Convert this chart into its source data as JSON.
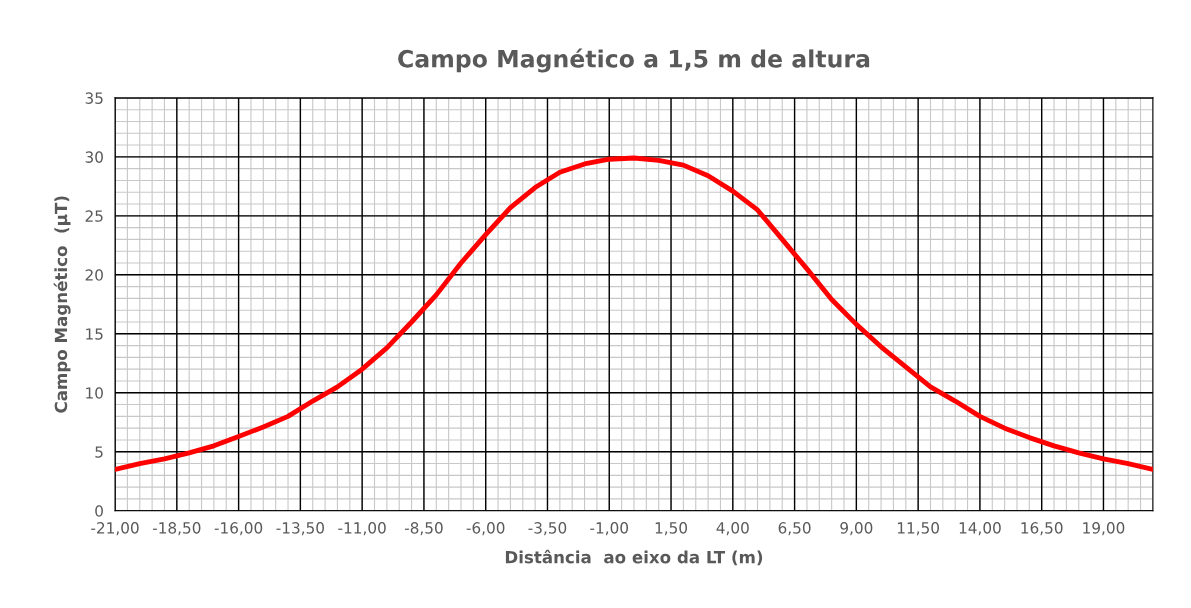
{
  "chart_data": {
    "type": "line",
    "title": "Campo Magnético a 1,5 m de altura",
    "xlabel": "Distância  ao eixo da LT (m)",
    "ylabel": "Campo Magnético  (µT)",
    "x": [
      -21,
      -20,
      -19,
      -18,
      -17,
      -16,
      -15,
      -14,
      -13,
      -12,
      -11,
      -10,
      -9,
      -8,
      -7,
      -6,
      -5,
      -4,
      -3,
      -2,
      -1,
      0,
      1,
      2,
      3,
      4,
      5,
      6,
      7,
      8,
      9,
      10,
      11,
      12,
      13,
      14,
      15,
      16,
      17,
      18,
      19,
      20,
      21
    ],
    "series": [
      {
        "color": "#ff0000",
        "values": [
          3.5,
          4.0,
          4.4,
          4.9,
          5.5,
          6.3,
          7.1,
          8.0,
          9.3,
          10.5,
          12.0,
          13.8,
          16.0,
          18.3,
          21.0,
          23.4,
          25.7,
          27.4,
          28.7,
          29.4,
          29.8,
          29.9,
          29.7,
          29.3,
          28.4,
          27.1,
          25.5,
          23.0,
          20.5,
          17.9,
          15.8,
          13.9,
          12.2,
          10.5,
          9.3,
          8.0,
          7.0,
          6.2,
          5.5,
          4.9,
          4.4,
          4.0,
          3.5
        ]
      }
    ],
    "xlim": [
      -21,
      21
    ],
    "xticks": [
      {
        "value": -21,
        "label": "-21,00"
      },
      {
        "value": -18.5,
        "label": "-18,50"
      },
      {
        "value": -16,
        "label": "-16,00"
      },
      {
        "value": -13.5,
        "label": "-13,50"
      },
      {
        "value": -11,
        "label": "-11,00"
      },
      {
        "value": -8.5,
        "label": "-8,50"
      },
      {
        "value": -6,
        "label": "-6,00"
      },
      {
        "value": -3.5,
        "label": "-3,50"
      },
      {
        "value": -1,
        "label": "-1,00"
      },
      {
        "value": 1.5,
        "label": "1,50"
      },
      {
        "value": 4,
        "label": "4,00"
      },
      {
        "value": 6.5,
        "label": "6,50"
      },
      {
        "value": 9,
        "label": "9,00"
      },
      {
        "value": 11.5,
        "label": "11,50"
      },
      {
        "value": 14,
        "label": "14,00"
      },
      {
        "value": 16.5,
        "label": "16,50"
      },
      {
        "value": 19,
        "label": "19,00"
      }
    ],
    "ylim": [
      0,
      35
    ],
    "yticks": [
      0,
      5,
      10,
      15,
      20,
      25,
      30,
      35
    ],
    "grid": true,
    "marker": "none",
    "line_style": "solid"
  }
}
